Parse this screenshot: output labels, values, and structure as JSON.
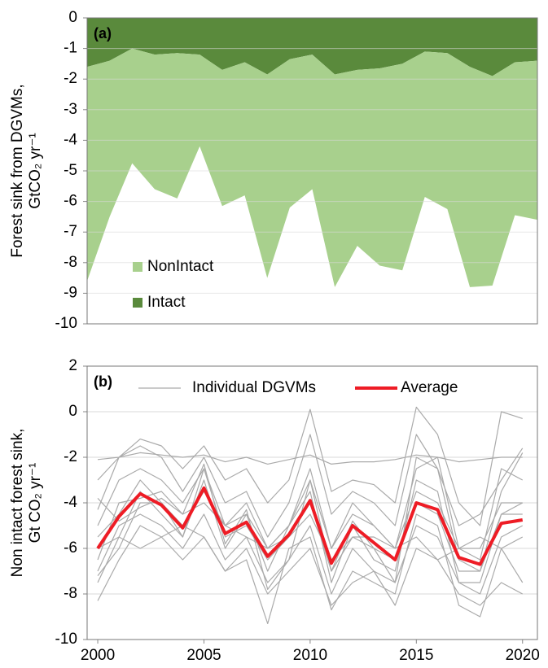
{
  "chart_data": [
    {
      "type": "area",
      "annotation": "(a)",
      "ylabel": [
        "Forest sink from DGVMs,",
        "GtCO₂ yr⁻¹"
      ],
      "ylim": [
        -10,
        0
      ],
      "yticks": [
        0,
        -1,
        -2,
        -3,
        -4,
        -5,
        -6,
        -7,
        -8,
        -9,
        -10
      ],
      "grid": true,
      "legend": "lower left",
      "series": [
        {
          "name": "Intact",
          "color": "#5a8a3c",
          "values": [
            -1.6,
            -1.4,
            -1.0,
            -1.2,
            -1.15,
            -1.2,
            -1.7,
            -1.45,
            -1.85,
            -1.35,
            -1.2,
            -1.85,
            -1.7,
            -1.65,
            -1.5,
            -1.1,
            -1.15,
            -1.6,
            -1.9,
            -1.45,
            -1.4
          ]
        },
        {
          "name": "NonIntact",
          "color": "#a8d08d",
          "values": [
            -7.0,
            -5.1,
            -3.75,
            -4.4,
            -4.75,
            -3.0,
            -4.45,
            -4.35,
            -6.65,
            -4.85,
            -4.4,
            -6.95,
            -5.75,
            -6.45,
            -6.75,
            -4.75,
            -5.1,
            -7.2,
            -6.85,
            -5.0,
            -5.2
          ]
        }
      ]
    },
    {
      "type": "line",
      "annotation": "(b)",
      "ylabel": [
        "Non intact forest sink,",
        "Gt CO₂ yr⁻¹"
      ],
      "x": [
        2000,
        2001,
        2002,
        2003,
        2004,
        2005,
        2006,
        2007,
        2008,
        2009,
        2010,
        2011,
        2012,
        2013,
        2014,
        2015,
        2016,
        2017,
        2018,
        2019,
        2020
      ],
      "xlim": [
        1999.5,
        2020.7
      ],
      "xticks": [
        2000,
        2005,
        2010,
        2015,
        2020
      ],
      "ylim": [
        -10,
        2
      ],
      "yticks": [
        2,
        0,
        -2,
        -4,
        -6,
        -8,
        -10
      ],
      "grid": true,
      "legend": "upper center",
      "series": [
        {
          "name": "Individual DGVMs",
          "color": "#aaaaaa",
          "values": [
            [
              -2.1,
              -2.0,
              -1.8,
              -1.9,
              -2.0,
              -1.9,
              -2.2,
              -2.0,
              -2.3,
              -2.1,
              -1.9,
              -2.3,
              -2.2,
              -2.2,
              -2.1,
              -1.9,
              -2.0,
              -2.2,
              -2.1,
              -2.0,
              -2.0
            ],
            [
              -3.0,
              -2.0,
              -1.2,
              -1.5,
              -2.5,
              -1.5,
              -3.0,
              -2.5,
              -4.0,
              -3.0,
              0.1,
              -3.5,
              -3.0,
              -3.2,
              -4.0,
              0.2,
              -1.0,
              -4.0,
              -5.0,
              0.0,
              -0.3
            ],
            [
              -4.3,
              -2.0,
              -1.5,
              -2.0,
              -3.5,
              -2.0,
              -4.0,
              -3.5,
              -5.5,
              -4.0,
              -1.0,
              -4.5,
              -3.5,
              -4.0,
              -5.0,
              -1.0,
              -2.5,
              -5.0,
              -4.5,
              -3.0,
              -1.6
            ],
            [
              -5.0,
              -3.0,
              -2.5,
              -3.0,
              -4.0,
              -2.5,
              -5.0,
              -4.0,
              -6.0,
              -5.0,
              -2.5,
              -6.0,
              -4.0,
              -5.0,
              -6.0,
              -2.5,
              -2.0,
              -6.0,
              -6.5,
              -2.5,
              -3.0
            ],
            [
              -6.0,
              -5.5,
              -3.5,
              -4.5,
              -5.5,
              -2.5,
              -5.5,
              -5.0,
              -6.5,
              -5.5,
              -4.0,
              -7.0,
              -5.5,
              -6.0,
              -6.5,
              -4.0,
              -4.5,
              -7.0,
              -7.0,
              -4.5,
              -4.0
            ],
            [
              -7.0,
              -5.0,
              -4.5,
              -5.0,
              -6.0,
              -4.5,
              -6.5,
              -5.5,
              -7.5,
              -6.5,
              -5.0,
              -8.0,
              -6.0,
              -7.0,
              -7.5,
              -5.0,
              -5.5,
              -7.5,
              -8.0,
              -5.5,
              -5.0
            ],
            [
              -8.3,
              -6.5,
              -5.0,
              -5.5,
              -6.5,
              -5.5,
              -7.0,
              -6.5,
              -9.3,
              -6.0,
              -5.5,
              -8.7,
              -7.0,
              -7.5,
              -8.0,
              -4.5,
              -5.0,
              -8.5,
              -9.0,
              -6.0,
              -7.5
            ],
            [
              -7.2,
              -6.0,
              -4.0,
              -4.0,
              -5.5,
              -3.0,
              -6.0,
              -4.5,
              -7.0,
              -5.0,
              -3.5,
              -7.5,
              -5.0,
              -6.5,
              -7.0,
              -3.0,
              -3.5,
              -7.5,
              -7.5,
              -4.5,
              -4.5
            ],
            [
              -6.5,
              -4.0,
              -3.8,
              -3.5,
              -4.5,
              -4.0,
              -5.0,
              -5.5,
              -6.0,
              -5.5,
              -4.5,
              -6.5,
              -5.5,
              -5.5,
              -6.0,
              -5.5,
              -6.5,
              -6.0,
              -5.5,
              -6.0,
              -5.5
            ],
            [
              -7.5,
              -5.5,
              -6.0,
              -5.5,
              -5.0,
              -5.5,
              -7.0,
              -6.0,
              -8.0,
              -7.0,
              -6.0,
              -8.5,
              -7.5,
              -7.0,
              -8.5,
              -6.0,
              -6.5,
              -8.0,
              -8.5,
              -7.5,
              -8.0
            ],
            [
              -5.5,
              -4.5,
              -3.0,
              -4.0,
              -5.0,
              -3.5,
              -5.0,
              -4.5,
              -6.0,
              -5.0,
              -3.0,
              -6.0,
              -4.5,
              -5.0,
              -6.0,
              -3.5,
              -4.0,
              -6.0,
              -6.0,
              -4.0,
              -4.0
            ],
            [
              -3.8,
              -4.8,
              -4.2,
              -3.8,
              -4.5,
              -2.3,
              -5.8,
              -4.3,
              -7.8,
              -6.5,
              -3.0,
              -7.0,
              -4.8,
              -6.0,
              -7.5,
              -2.0,
              -2.5,
              -6.5,
              -7.0,
              -3.5,
              -1.8
            ]
          ]
        },
        {
          "name": "Average",
          "color": "#ee1c25",
          "values": [
            -6.0,
            -4.6,
            -3.6,
            -4.1,
            -5.1,
            -3.35,
            -5.35,
            -4.85,
            -6.35,
            -5.4,
            -3.9,
            -6.65,
            -5.0,
            -5.75,
            -6.5,
            -4.0,
            -4.3,
            -6.4,
            -6.7,
            -4.9,
            -4.75
          ]
        }
      ]
    }
  ]
}
